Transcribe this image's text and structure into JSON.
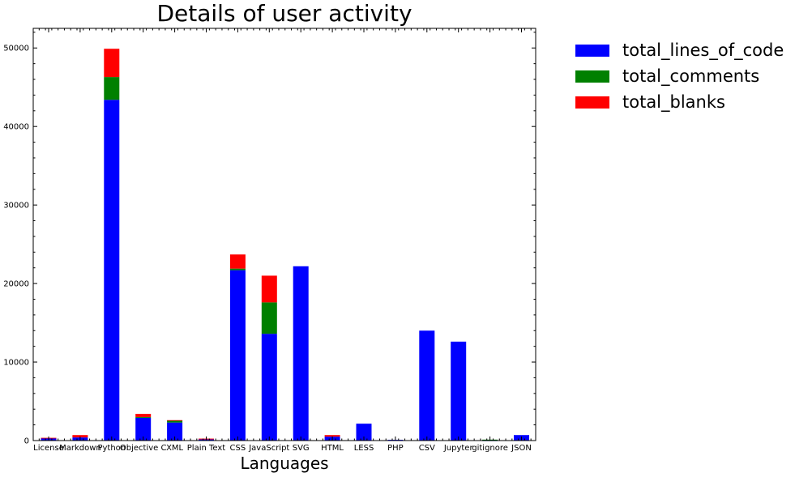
{
  "chart_data": {
    "type": "bar",
    "stacked": true,
    "title": "Details of user activity",
    "xlabel": "Languages",
    "ylabel": "",
    "ylim": [
      0,
      52500
    ],
    "yticks": [
      0,
      10000,
      20000,
      30000,
      40000,
      50000
    ],
    "grid": false,
    "legend_position": "outside-right-top",
    "categories": [
      "License",
      "Markdown",
      "Python",
      "Objective C",
      "XML",
      "Plain Text",
      "CSS",
      "JavaScript",
      "SVG",
      "HTML",
      "LESS",
      "PHP",
      "CSV",
      "Jupyter",
      "gitignore",
      "JSON"
    ],
    "series": [
      {
        "name": "total_lines_of_code",
        "color": "#0000ff",
        "values": [
          300,
          400,
          43400,
          2900,
          2300,
          150,
          21700,
          13600,
          22200,
          500,
          2150,
          100,
          14000,
          12600,
          20,
          700
        ]
      },
      {
        "name": "total_comments",
        "color": "#008000",
        "values": [
          0,
          0,
          2900,
          100,
          250,
          0,
          200,
          4000,
          0,
          0,
          0,
          0,
          0,
          0,
          100,
          0
        ]
      },
      {
        "name": "total_blanks",
        "color": "#ff0000",
        "values": [
          50,
          300,
          3600,
          400,
          50,
          100,
          1800,
          3400,
          0,
          200,
          0,
          0,
          0,
          0,
          0,
          0
        ]
      }
    ]
  }
}
